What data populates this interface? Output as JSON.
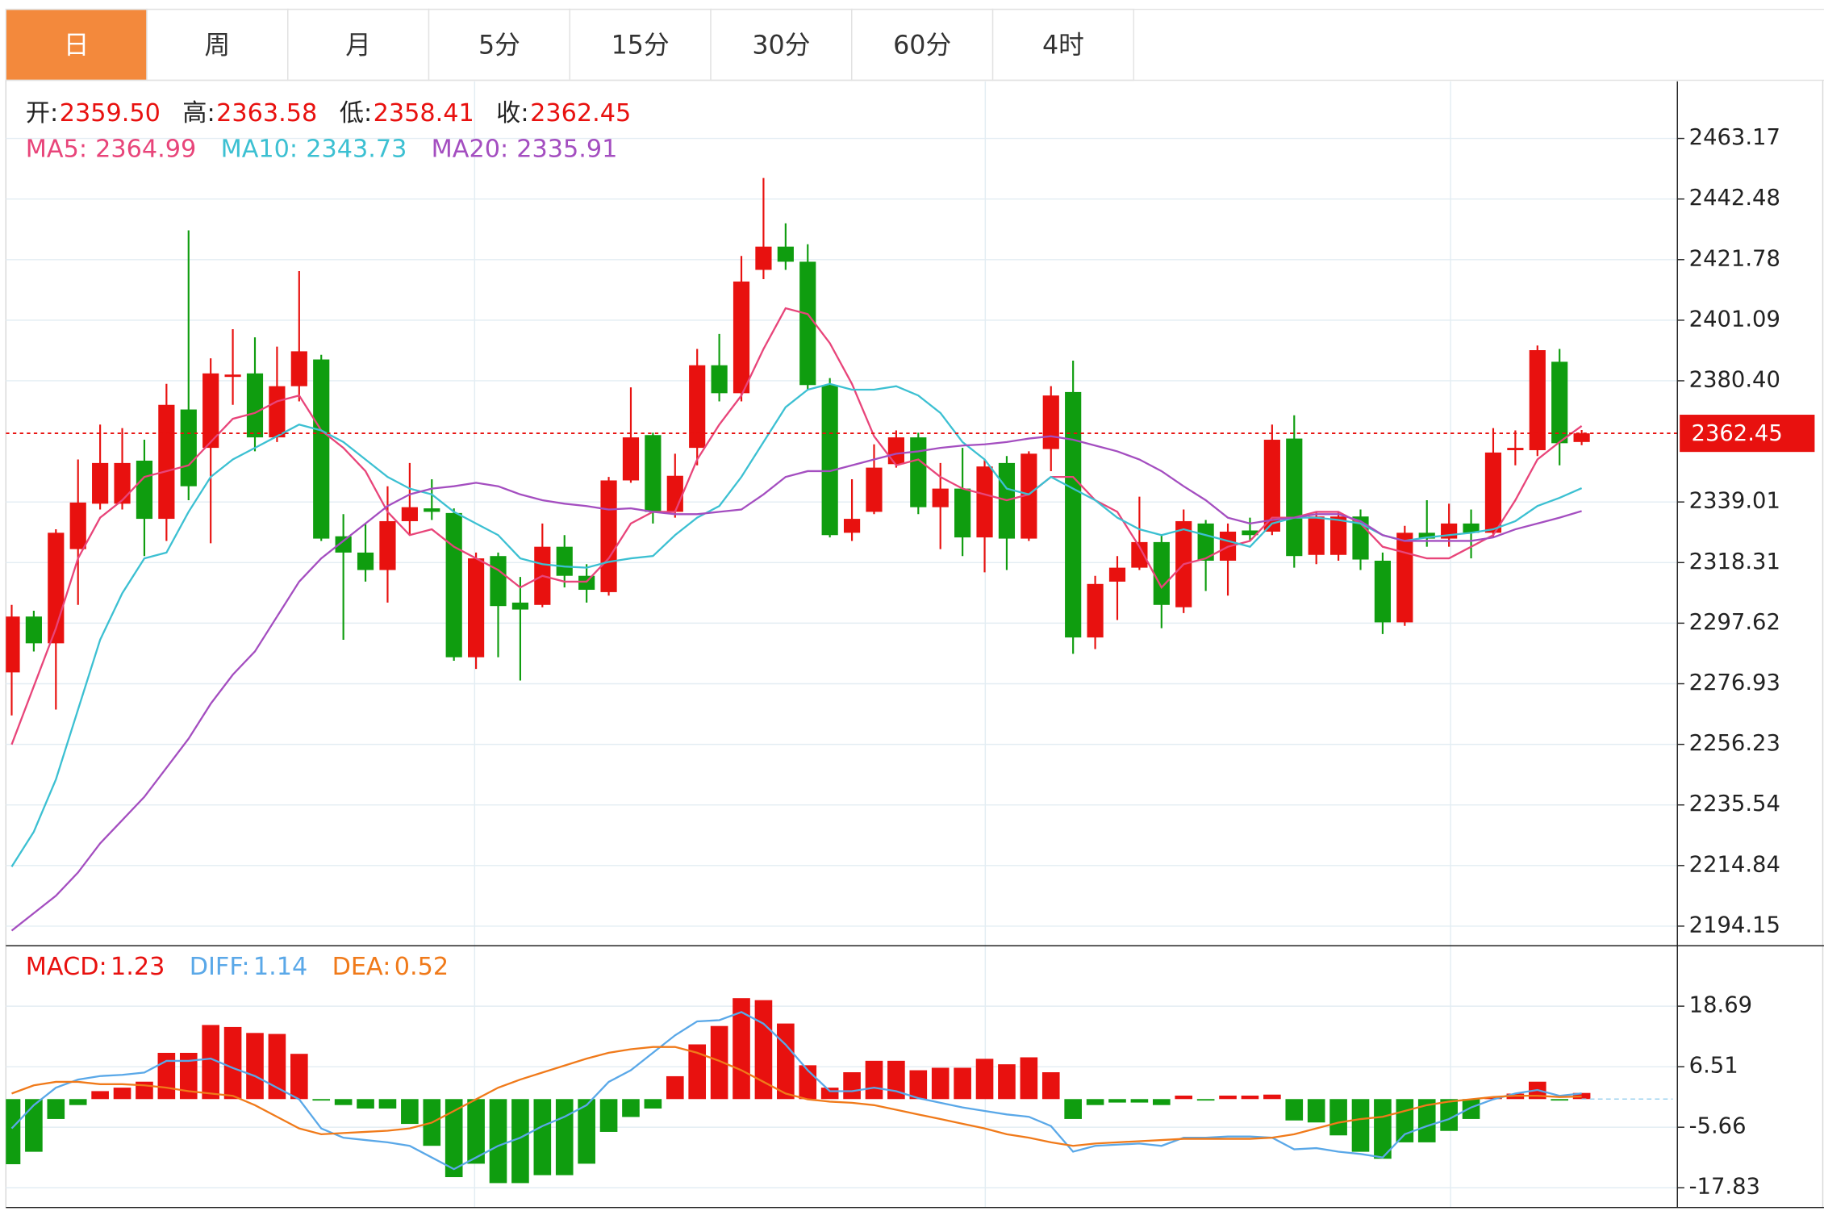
{
  "tabs": [
    "日",
    "周",
    "月",
    "5分",
    "15分",
    "30分",
    "60分",
    "4时"
  ],
  "active_tab": "日",
  "chart_data": [
    {
      "type": "candlestick",
      "up_color": "#e8110f",
      "down_color": "#0f9d0f",
      "header": [
        {
          "name": "开:",
          "label": "2359.50"
        },
        {
          "name": "高:",
          "label": "2363.58"
        },
        {
          "name": "低:",
          "label": "2358.41"
        },
        {
          "name": "收:",
          "label": "2362.45"
        }
      ],
      "open": [
        2280.81,
        2299.88,
        2290.74,
        2322.92,
        2338.42,
        2338.42,
        2353.12,
        2333.25,
        2370.6,
        2357.49,
        2381.72,
        2382.92,
        2361.07,
        2378.55,
        2387.68,
        2327.29,
        2321.73,
        2315.77,
        2332.46,
        2336.83,
        2335.24,
        2285.98,
        2320.54,
        2304.65,
        2303.85,
        2323.72,
        2313.79,
        2308.22,
        2346.37,
        2361.86,
        2335.64,
        2357.49,
        2385.7,
        2376.16,
        2418.28,
        2426.22,
        2421.06,
        2378.94,
        2328.49,
        2335.64,
        2351.93,
        2361.07,
        2337.23,
        2343.58,
        2326.9,
        2352.32,
        2326.5,
        2357.09,
        2376.56,
        2292.73,
        2311.8,
        2316.57,
        2325.31,
        2303.06,
        2331.66,
        2318.95,
        2329.28,
        2328.88,
        2360.67,
        2320.94,
        2320.94,
        2334.05,
        2318.95,
        2297.89,
        2328.49,
        2326.5,
        2331.66,
        2328.49,
        2356.7,
        2356.7,
        2386.89,
        2359.5
      ],
      "high": [
        2303.85,
        2301.87,
        2329.68,
        2353.52,
        2365.44,
        2364.24,
        2360.27,
        2379.34,
        2431.78,
        2388.08,
        2398.01,
        2395.23,
        2392.05,
        2417.88,
        2389.27,
        2334.84,
        2331.66,
        2344.38,
        2352.32,
        2346.76,
        2336.83,
        2321.73,
        2321.73,
        2313.39,
        2331.66,
        2327.69,
        2317.76,
        2347.56,
        2378.15,
        2362.65,
        2355.5,
        2391.26,
        2396.42,
        2423.04,
        2449.66,
        2434.17,
        2427.02,
        2381.33,
        2346.76,
        2358.68,
        2363.45,
        2362.65,
        2352.32,
        2357.49,
        2353.52,
        2354.71,
        2356.3,
        2378.55,
        2387.29,
        2313.79,
        2320.54,
        2340.8,
        2327.69,
        2336.43,
        2332.86,
        2331.66,
        2333.65,
        2365.44,
        2368.61,
        2335.64,
        2335.64,
        2336.43,
        2321.73,
        2330.87,
        2339.61,
        2338.42,
        2336.43,
        2364.24,
        2363.45,
        2392.45,
        2391.26,
        2363.58
      ],
      "low": [
        2266.11,
        2287.96,
        2268.1,
        2303.85,
        2336.43,
        2336.43,
        2320.54,
        2325.71,
        2339.61,
        2324.91,
        2372.19,
        2356.3,
        2359.48,
        2373.38,
        2325.71,
        2291.93,
        2311.8,
        2304.65,
        2327.69,
        2332.86,
        2284.78,
        2282.0,
        2285.98,
        2278.03,
        2303.06,
        2309.81,
        2304.65,
        2307.03,
        2345.57,
        2331.66,
        2333.65,
        2351.53,
        2373.38,
        2373.38,
        2415.1,
        2418.28,
        2377.35,
        2326.9,
        2325.71,
        2334.84,
        2350.74,
        2334.84,
        2322.92,
        2320.54,
        2314.98,
        2315.77,
        2325.71,
        2349.54,
        2287.17,
        2288.76,
        2298.69,
        2315.77,
        2295.91,
        2301.07,
        2308.62,
        2307.03,
        2325.71,
        2327.69,
        2316.57,
        2317.76,
        2318.95,
        2315.77,
        2293.92,
        2296.7,
        2323.72,
        2323.72,
        2319.75,
        2326.9,
        2351.53,
        2354.71,
        2351.53,
        2358.41
      ],
      "close": [
        2299.88,
        2290.74,
        2328.49,
        2338.82,
        2352.32,
        2352.32,
        2333.25,
        2372.19,
        2344.38,
        2382.92,
        2382.52,
        2361.07,
        2378.55,
        2390.47,
        2326.5,
        2321.73,
        2315.77,
        2332.46,
        2337.23,
        2335.64,
        2285.98,
        2319.75,
        2303.46,
        2302.26,
        2323.72,
        2313.79,
        2309.02,
        2346.37,
        2361.07,
        2335.64,
        2347.95,
        2385.7,
        2376.16,
        2414.3,
        2426.22,
        2421.06,
        2378.94,
        2327.69,
        2333.25,
        2350.74,
        2361.07,
        2337.23,
        2343.58,
        2326.9,
        2351.13,
        2326.5,
        2355.5,
        2375.37,
        2292.73,
        2311.01,
        2316.57,
        2325.31,
        2303.85,
        2332.46,
        2318.95,
        2328.88,
        2327.69,
        2360.27,
        2320.54,
        2334.05,
        2334.05,
        2319.35,
        2297.89,
        2328.49,
        2326.5,
        2331.66,
        2328.49,
        2355.9,
        2357.49,
        2390.86,
        2359.08,
        2362.45
      ],
      "series": [
        {
          "name": "MA5:",
          "color": "#e8457a",
          "values": [
            2256.18,
            2276.04,
            2295.91,
            2319.75,
            2333.65,
            2339.61,
            2347.56,
            2349.54,
            2351.53,
            2359.48,
            2367.42,
            2369.41,
            2373.38,
            2375.37,
            2363.45,
            2357.49,
            2349.54,
            2335.64,
            2327.69,
            2329.68,
            2323.72,
            2319.75,
            2315.77,
            2309.81,
            2313.79,
            2311.8,
            2311.8,
            2319.75,
            2331.66,
            2335.64,
            2335.64,
            2353.52,
            2365.44,
            2375.37,
            2391.26,
            2405.17,
            2403.18,
            2393.25,
            2379.34,
            2361.46,
            2351.53,
            2353.52,
            2347.56,
            2343.58,
            2341.6,
            2339.61,
            2341.6,
            2347.56,
            2347.56,
            2339.61,
            2335.64,
            2323.72,
            2309.81,
            2317.76,
            2319.75,
            2323.72,
            2325.71,
            2333.65,
            2333.65,
            2335.64,
            2335.64,
            2331.66,
            2323.72,
            2321.73,
            2319.75,
            2319.75,
            2323.72,
            2327.69,
            2339.61,
            2353.52,
            2359.48,
            2364.99
          ]
        },
        {
          "name": "MA10:",
          "color": "#3cc0d2",
          "values": [
            2214.46,
            2226.38,
            2244.26,
            2268.1,
            2291.93,
            2307.83,
            2319.75,
            2321.73,
            2335.64,
            2347.56,
            2353.52,
            2357.49,
            2361.46,
            2365.44,
            2363.45,
            2359.48,
            2353.52,
            2347.56,
            2343.58,
            2341.6,
            2335.64,
            2331.66,
            2327.69,
            2319.75,
            2317.76,
            2316.96,
            2316.57,
            2318.55,
            2319.75,
            2320.54,
            2327.69,
            2333.65,
            2337.62,
            2347.56,
            2359.48,
            2371.39,
            2377.35,
            2379.34,
            2377.35,
            2377.35,
            2378.55,
            2375.37,
            2369.41,
            2359.48,
            2353.52,
            2343.58,
            2341.6,
            2347.56,
            2343.58,
            2339.61,
            2333.65,
            2329.68,
            2327.69,
            2329.68,
            2327.69,
            2325.71,
            2323.72,
            2331.66,
            2333.65,
            2333.65,
            2332.86,
            2331.66,
            2327.69,
            2325.71,
            2326.9,
            2327.69,
            2328.49,
            2329.68,
            2332.46,
            2337.62,
            2340.41,
            2343.73
          ]
        },
        {
          "name": "MA20:",
          "color": "#a44ec0",
          "values": [
            2192.61,
            2198.57,
            2204.53,
            2212.47,
            2222.41,
            2230.35,
            2238.3,
            2248.23,
            2258.16,
            2270.08,
            2280.02,
            2287.96,
            2299.88,
            2311.8,
            2319.75,
            2325.71,
            2331.66,
            2337.62,
            2341.6,
            2343.58,
            2344.38,
            2345.57,
            2344.38,
            2341.6,
            2339.61,
            2338.42,
            2337.62,
            2336.43,
            2336.83,
            2335.64,
            2334.84,
            2334.84,
            2335.64,
            2336.43,
            2341.6,
            2347.56,
            2349.54,
            2349.54,
            2351.53,
            2353.52,
            2355.5,
            2356.3,
            2357.49,
            2358.28,
            2358.68,
            2359.48,
            2360.67,
            2361.46,
            2360.27,
            2358.28,
            2356.3,
            2353.52,
            2349.54,
            2344.38,
            2339.61,
            2333.65,
            2331.66,
            2332.86,
            2333.65,
            2334.84,
            2334.84,
            2332.46,
            2327.69,
            2325.71,
            2325.71,
            2325.71,
            2325.71,
            2326.9,
            2329.68,
            2331.66,
            2333.65,
            2335.91
          ]
        }
      ],
      "ylim": [
        2187.84,
        2481.84
      ],
      "yticks": [
        2463.17,
        2442.48,
        2421.78,
        2401.09,
        {
          "value": 2380.4,
          "label": "2380.40"
        },
        2339.01,
        2318.31,
        2297.62,
        2276.93,
        2256.23,
        2235.54,
        2214.84,
        2194.15
      ],
      "grid": true
    },
    {
      "type": "macd",
      "histogram": {
        "name": "MACD:",
        "up_color": "#e8110f",
        "down_color": "#0f9d0f",
        "values": [
          -13.1,
          -10.6,
          -4.0,
          -1.2,
          1.6,
          2.3,
          3.5,
          9.3,
          9.3,
          14.9,
          14.5,
          13.3,
          13.1,
          9.1,
          -0.3,
          -1.2,
          -1.9,
          -1.9,
          -5.0,
          -9.4,
          -15.7,
          -13.0,
          -16.9,
          -16.9,
          -15.3,
          -15.3,
          -13.0,
          -6.6,
          -3.6,
          -1.9,
          4.6,
          11.0,
          14.7,
          20.3,
          19.9,
          15.2,
          6.8,
          2.3,
          5.4,
          7.7,
          7.7,
          5.8,
          6.3,
          6.3,
          8.1,
          7.0,
          8.4,
          5.4,
          -4.0,
          -1.2,
          -0.7,
          -0.7,
          -1.2,
          0.7,
          -0.3,
          0.7,
          0.7,
          0.9,
          -4.3,
          -4.7,
          -7.3,
          -10.6,
          -12.0,
          -8.7,
          -8.7,
          -6.4,
          -4.0,
          0.4,
          1.1,
          3.5,
          -0.3,
          1.23
        ]
      },
      "series": [
        {
          "name": "DIFF:",
          "color": "#5aa8e8",
          "values": [
            -5.9,
            -1.22,
            2.29,
            3.93,
            4.63,
            4.87,
            5.34,
            7.68,
            7.68,
            8.14,
            6.27,
            4.63,
            2.29,
            -0.05,
            -5.9,
            -7.77,
            -8.24,
            -8.7,
            -9.41,
            -11.75,
            -14.09,
            -11.75,
            -9.41,
            -7.77,
            -5.43,
            -3.56,
            -1.22,
            3.46,
            5.8,
            9.31,
            12.82,
            15.63,
            15.87,
            17.5,
            15.16,
            10.95,
            5.8,
            1.59,
            1.59,
            2.29,
            1.59,
            0.19,
            -0.75,
            -1.68,
            -2.39,
            -3.09,
            -3.56,
            -5.43,
            -10.58,
            -9.41,
            -9.17,
            -8.94,
            -9.41,
            -7.77,
            -7.77,
            -7.53,
            -7.53,
            -7.77,
            -10.11,
            -9.87,
            -10.58,
            -11.04,
            -11.75,
            -7.07,
            -5.43,
            -4.02,
            -1.68,
            -0.05,
            1.12,
            1.83,
            0.66,
            1.14
          ]
        },
        {
          "name": "DEA:",
          "color": "#f07a1a",
          "values": [
            1.12,
            2.76,
            3.46,
            3.46,
            3.0,
            3.0,
            2.76,
            2.29,
            1.59,
            1.12,
            0.66,
            -1.22,
            -3.56,
            -5.9,
            -7.07,
            -6.83,
            -6.6,
            -6.36,
            -5.9,
            -4.73,
            -2.39,
            -0.05,
            2.29,
            3.93,
            5.34,
            6.74,
            8.14,
            9.31,
            10.02,
            10.48,
            10.48,
            9.31,
            7.68,
            5.8,
            3.46,
            1.12,
            -0.05,
            -0.51,
            -0.75,
            -1.22,
            -2.15,
            -3.09,
            -4.02,
            -4.96,
            -5.9,
            -7.07,
            -7.77,
            -8.7,
            -9.41,
            -8.94,
            -8.7,
            -8.47,
            -8.24,
            -8.0,
            -8.0,
            -8.0,
            -8.0,
            -7.77,
            -7.07,
            -5.9,
            -4.73,
            -4.02,
            -3.56,
            -2.39,
            -1.22,
            -0.51,
            -0.05,
            0.42,
            0.66,
            0.66,
            0.42,
            0.52
          ]
        }
      ],
      "ylim": [
        -21.81,
        30.37
      ],
      "yticks": [
        18.69,
        6.51,
        -5.66,
        -17.83
      ],
      "grid": true
    }
  ]
}
